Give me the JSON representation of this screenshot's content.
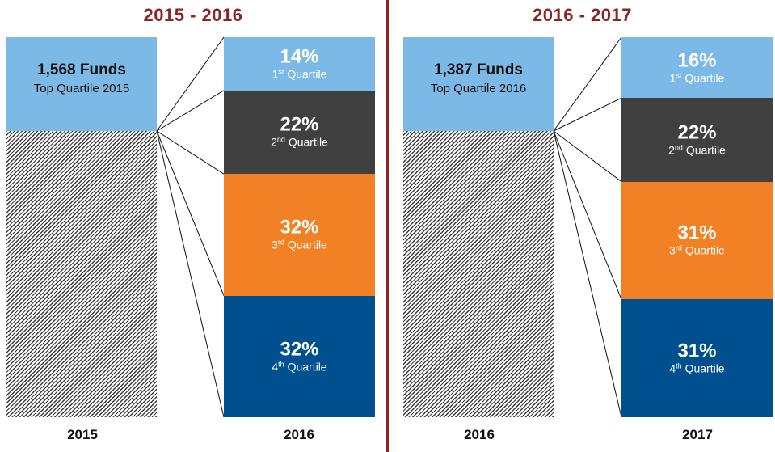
{
  "chart_data": [
    {
      "type": "bar",
      "title": "2015 - 2016",
      "source": {
        "year": "2015",
        "count_label": "1,568 Funds",
        "sub_label": "Top Quartile 2015"
      },
      "target_year": "2016",
      "categories": [
        "1st Quartile",
        "2nd Quartile",
        "3rd Quartile",
        "4th Quartile"
      ],
      "category_parts": [
        [
          "1",
          "st",
          " Quartile"
        ],
        [
          "2",
          "nd",
          " Quartile"
        ],
        [
          "3",
          "rd",
          " Quartile"
        ],
        [
          "4",
          "th",
          " Quartile"
        ]
      ],
      "values": [
        14,
        22,
        32,
        32
      ],
      "value_labels": [
        "14%",
        "22%",
        "32%",
        "32%"
      ],
      "colors": [
        "#7db9e6",
        "#404040",
        "#f28024",
        "#00508f"
      ]
    },
    {
      "type": "bar",
      "title": "2016 - 2017",
      "source": {
        "year": "2016",
        "count_label": "1,387 Funds",
        "sub_label": "Top Quartile 2016"
      },
      "target_year": "2017",
      "categories": [
        "1st Quartile",
        "2nd Quartile",
        "3rd Quartile",
        "4th Quartile"
      ],
      "category_parts": [
        [
          "1",
          "st",
          " Quartile"
        ],
        [
          "2",
          "nd",
          " Quartile"
        ],
        [
          "3",
          "rd",
          " Quartile"
        ],
        [
          "4",
          "th",
          " Quartile"
        ]
      ],
      "values": [
        16,
        22,
        31,
        31
      ],
      "value_labels": [
        "16%",
        "22%",
        "31%",
        "31%"
      ],
      "colors": [
        "#7db9e6",
        "#404040",
        "#f28024",
        "#00508f"
      ]
    }
  ]
}
